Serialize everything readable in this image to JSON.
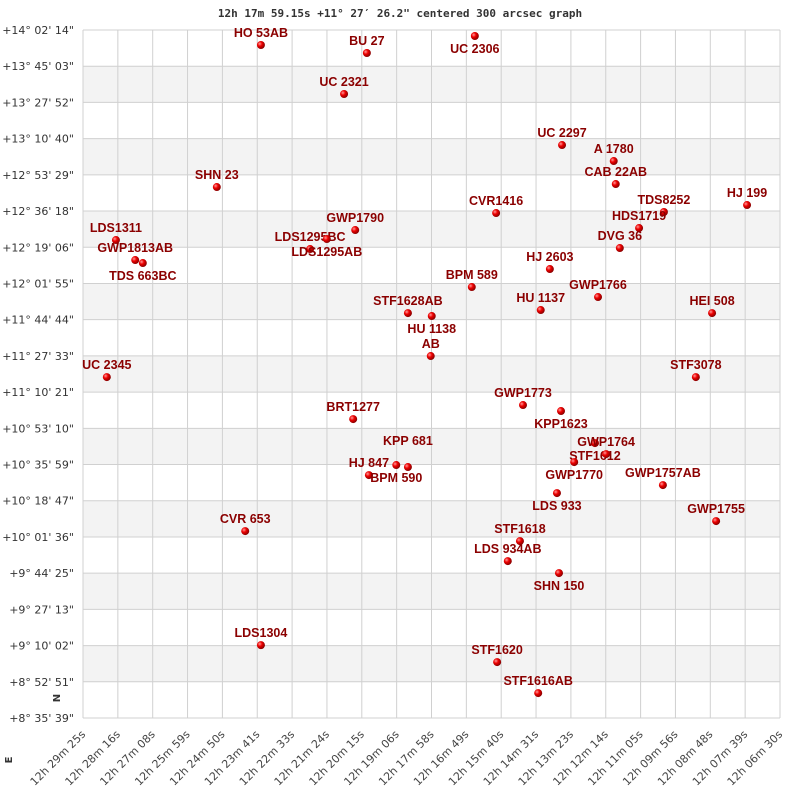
{
  "chart_data": {
    "type": "scatter",
    "title": "12h 17m 59.15s +11° 27′ 26.2\" centered 300 arcsec graph",
    "xlabel": "",
    "ylabel": "",
    "x_reversed": true,
    "xlim": [
      "12h29m25s",
      "12h06m30s"
    ],
    "ylim": [
      "+8°35'39\"",
      "+14°02'14\""
    ],
    "grid": true,
    "alternating_row_shading": true,
    "point_color": "#dd0000",
    "label_color": "#8b0000",
    "compass": {
      "north": "N",
      "east": "E"
    },
    "x_tick_labels": [
      "12h 29m 25s",
      "12h 28m 16s",
      "12h 27m 08s",
      "12h 25m 59s",
      "12h 24m 50s",
      "12h 23m 41s",
      "12h 22m 33s",
      "12h 21m 24s",
      "12h 20m 15s",
      "12h 19m 06s",
      "12h 17m 58s",
      "12h 16m 49s",
      "12h 15m 40s",
      "12h 14m 31s",
      "12h 13m 23s",
      "12h 12m 14s",
      "12h 11m 05s",
      "12h 09m 56s",
      "12h 08m 48s",
      "12h 07m 39s",
      "12h 06m 30s"
    ],
    "y_tick_labels": [
      "+14° 02' 14\"",
      "+13° 45' 03\"",
      "+13° 27' 52\"",
      "+13° 10' 40\"",
      "+12° 53' 29\"",
      "+12° 36' 18\"",
      "+12° 19' 06\"",
      "+12° 01' 55\"",
      "+11° 44' 44\"",
      "+11° 27' 33\"",
      "+11° 10' 21\"",
      "+10° 53' 10\"",
      "+10° 35' 59\"",
      "+10° 18' 47\"",
      "+10° 01' 36\"",
      "+9° 44' 25\"",
      "+9° 27' 13\"",
      "+9° 10' 02\"",
      "+8° 52' 51\"",
      "+8° 35' 39\""
    ],
    "points": [
      {
        "name": "HO  53AB",
        "ra": "12h23m34s",
        "dec": "+13°55'07\""
      },
      {
        "name": "BU  27",
        "ra": "12h20m05s",
        "dec": "+13°51'19\""
      },
      {
        "name": "UC 2321",
        "ra": "12h20m50s",
        "dec": "+13°31'51\""
      },
      {
        "name": "SHN  23",
        "ra": "12h25m01s",
        "dec": "+12°47'42\""
      },
      {
        "name": "LDS1311",
        "ra": "12h28m20s",
        "dec": "+12°22'32\""
      },
      {
        "name": "GWP1813AB",
        "ra": "12h27m42s",
        "dec": "+12°13'02\""
      },
      {
        "name": "TDS 663BC",
        "ra": "12h27m27s",
        "dec": "+12°11'37\""
      },
      {
        "name": "LDS1295BC",
        "ra": "12h21m57s",
        "dec": "+12°18'16\""
      },
      {
        "name": "LDS1295AB",
        "ra": "12h21m24s",
        "dec": "+12°23'00\""
      },
      {
        "name": "GWP1790",
        "ra": "12h20m28s",
        "dec": "+12°27'17\""
      },
      {
        "name": "UC 2306",
        "ra": "12h16m32s",
        "dec": "+13°59'23\""
      },
      {
        "name": "UC 2297",
        "ra": "12h13m40s",
        "dec": "+13°07'38\""
      },
      {
        "name": "A  1780",
        "ra": "12h11m58s",
        "dec": "+13°00'02\""
      },
      {
        "name": "CAB  22AB",
        "ra": "12h11m54s",
        "dec": "+12°49'07\""
      },
      {
        "name": "CVR1416",
        "ra": "12h15m50s",
        "dec": "+12°35'21\""
      },
      {
        "name": "TDS8252",
        "ra": "12h10m19s",
        "dec": "+12°35'50\""
      },
      {
        "name": "HDS1719",
        "ra": "12h11m08s",
        "dec": "+12°28'14\""
      },
      {
        "name": "DVG  36",
        "ra": "12h11m46s",
        "dec": "+12°18'44\""
      },
      {
        "name": "HJ  199",
        "ra": "12h07m35s",
        "dec": "+12°39'09\""
      },
      {
        "name": "HJ 2603",
        "ra": "12h14m04s",
        "dec": "+12°08'46\""
      },
      {
        "name": "BPM 589",
        "ra": "12h16m38s",
        "dec": "+12°00'13\""
      },
      {
        "name": "GWP1766",
        "ra": "12h12m29s",
        "dec": "+11°55'28\""
      },
      {
        "name": "HU 1137",
        "ra": "12h14m22s",
        "dec": "+11°49'18\""
      },
      {
        "name": "HEI 508",
        "ra": "12h08m44s",
        "dec": "+11°47'52\""
      },
      {
        "name": "STF1628AB",
        "ra": "12h18m44s",
        "dec": "+11°47'52\""
      },
      {
        "name": "HU 1138",
        "ra": "12h17m57s",
        "dec": "+11°46'27\""
      },
      {
        "name": "AB",
        "ra": "12h17m59s",
        "dec": "+11°27'28\""
      },
      {
        "name": "UC 2345",
        "ra": "12h28m38s",
        "dec": "+11°17'29\""
      },
      {
        "name": "STF3078",
        "ra": "12h09m16s",
        "dec": "+11°17'29\""
      },
      {
        "name": "GWP1773",
        "ra": "12h14m57s",
        "dec": "+11°04'12\""
      },
      {
        "name": "KPP1623",
        "ra": "12h13m42s",
        "dec": "+11°01'21\""
      },
      {
        "name": "BRT1277",
        "ra": "12h20m32s",
        "dec": "+10°57'33\""
      },
      {
        "name": "STF1612",
        "ra": "12h12m35s",
        "dec": "+10°46'09\""
      },
      {
        "name": "GWP1764",
        "ra": "12h12m13s",
        "dec": "+10°40'56\""
      },
      {
        "name": "GWP1770",
        "ra": "12h13m16s",
        "dec": "+10°37'08\""
      },
      {
        "name": "HJ  847",
        "ra": "12h20m01s",
        "dec": "+10°30'58\""
      },
      {
        "name": "BPM 590",
        "ra": "12h19m07s",
        "dec": "+10°35'43\""
      },
      {
        "name": "KPP 681",
        "ra": "12h18m44s",
        "dec": "+10°34'46\""
      },
      {
        "name": "LDS 933",
        "ra": "12h13m50s",
        "dec": "+10°22'25\""
      },
      {
        "name": "GWP1757AB",
        "ra": "12h10m21s",
        "dec": "+10°26'13\""
      },
      {
        "name": "GWP1755",
        "ra": "12h08m36s",
        "dec": "+10°09'07\""
      },
      {
        "name": "CVR 653",
        "ra": "12h24m05s",
        "dec": "+10°04'23\""
      },
      {
        "name": "STF1618",
        "ra": "12h15m03s",
        "dec": "+9°59'38\""
      },
      {
        "name": "LDS 934AB",
        "ra": "12h15m27s",
        "dec": "+9°50'08\""
      },
      {
        "name": "SHN 150",
        "ra": "12h13m46s",
        "dec": "+9°44'26\""
      },
      {
        "name": "LDS1304",
        "ra": "12h23m34s",
        "dec": "+9°10'15\""
      },
      {
        "name": "STF1620",
        "ra": "12h15m48s",
        "dec": "+9°02'11\""
      },
      {
        "name": "STF1616AB",
        "ra": "12h14m27s",
        "dec": "+8°47'28\""
      }
    ]
  }
}
